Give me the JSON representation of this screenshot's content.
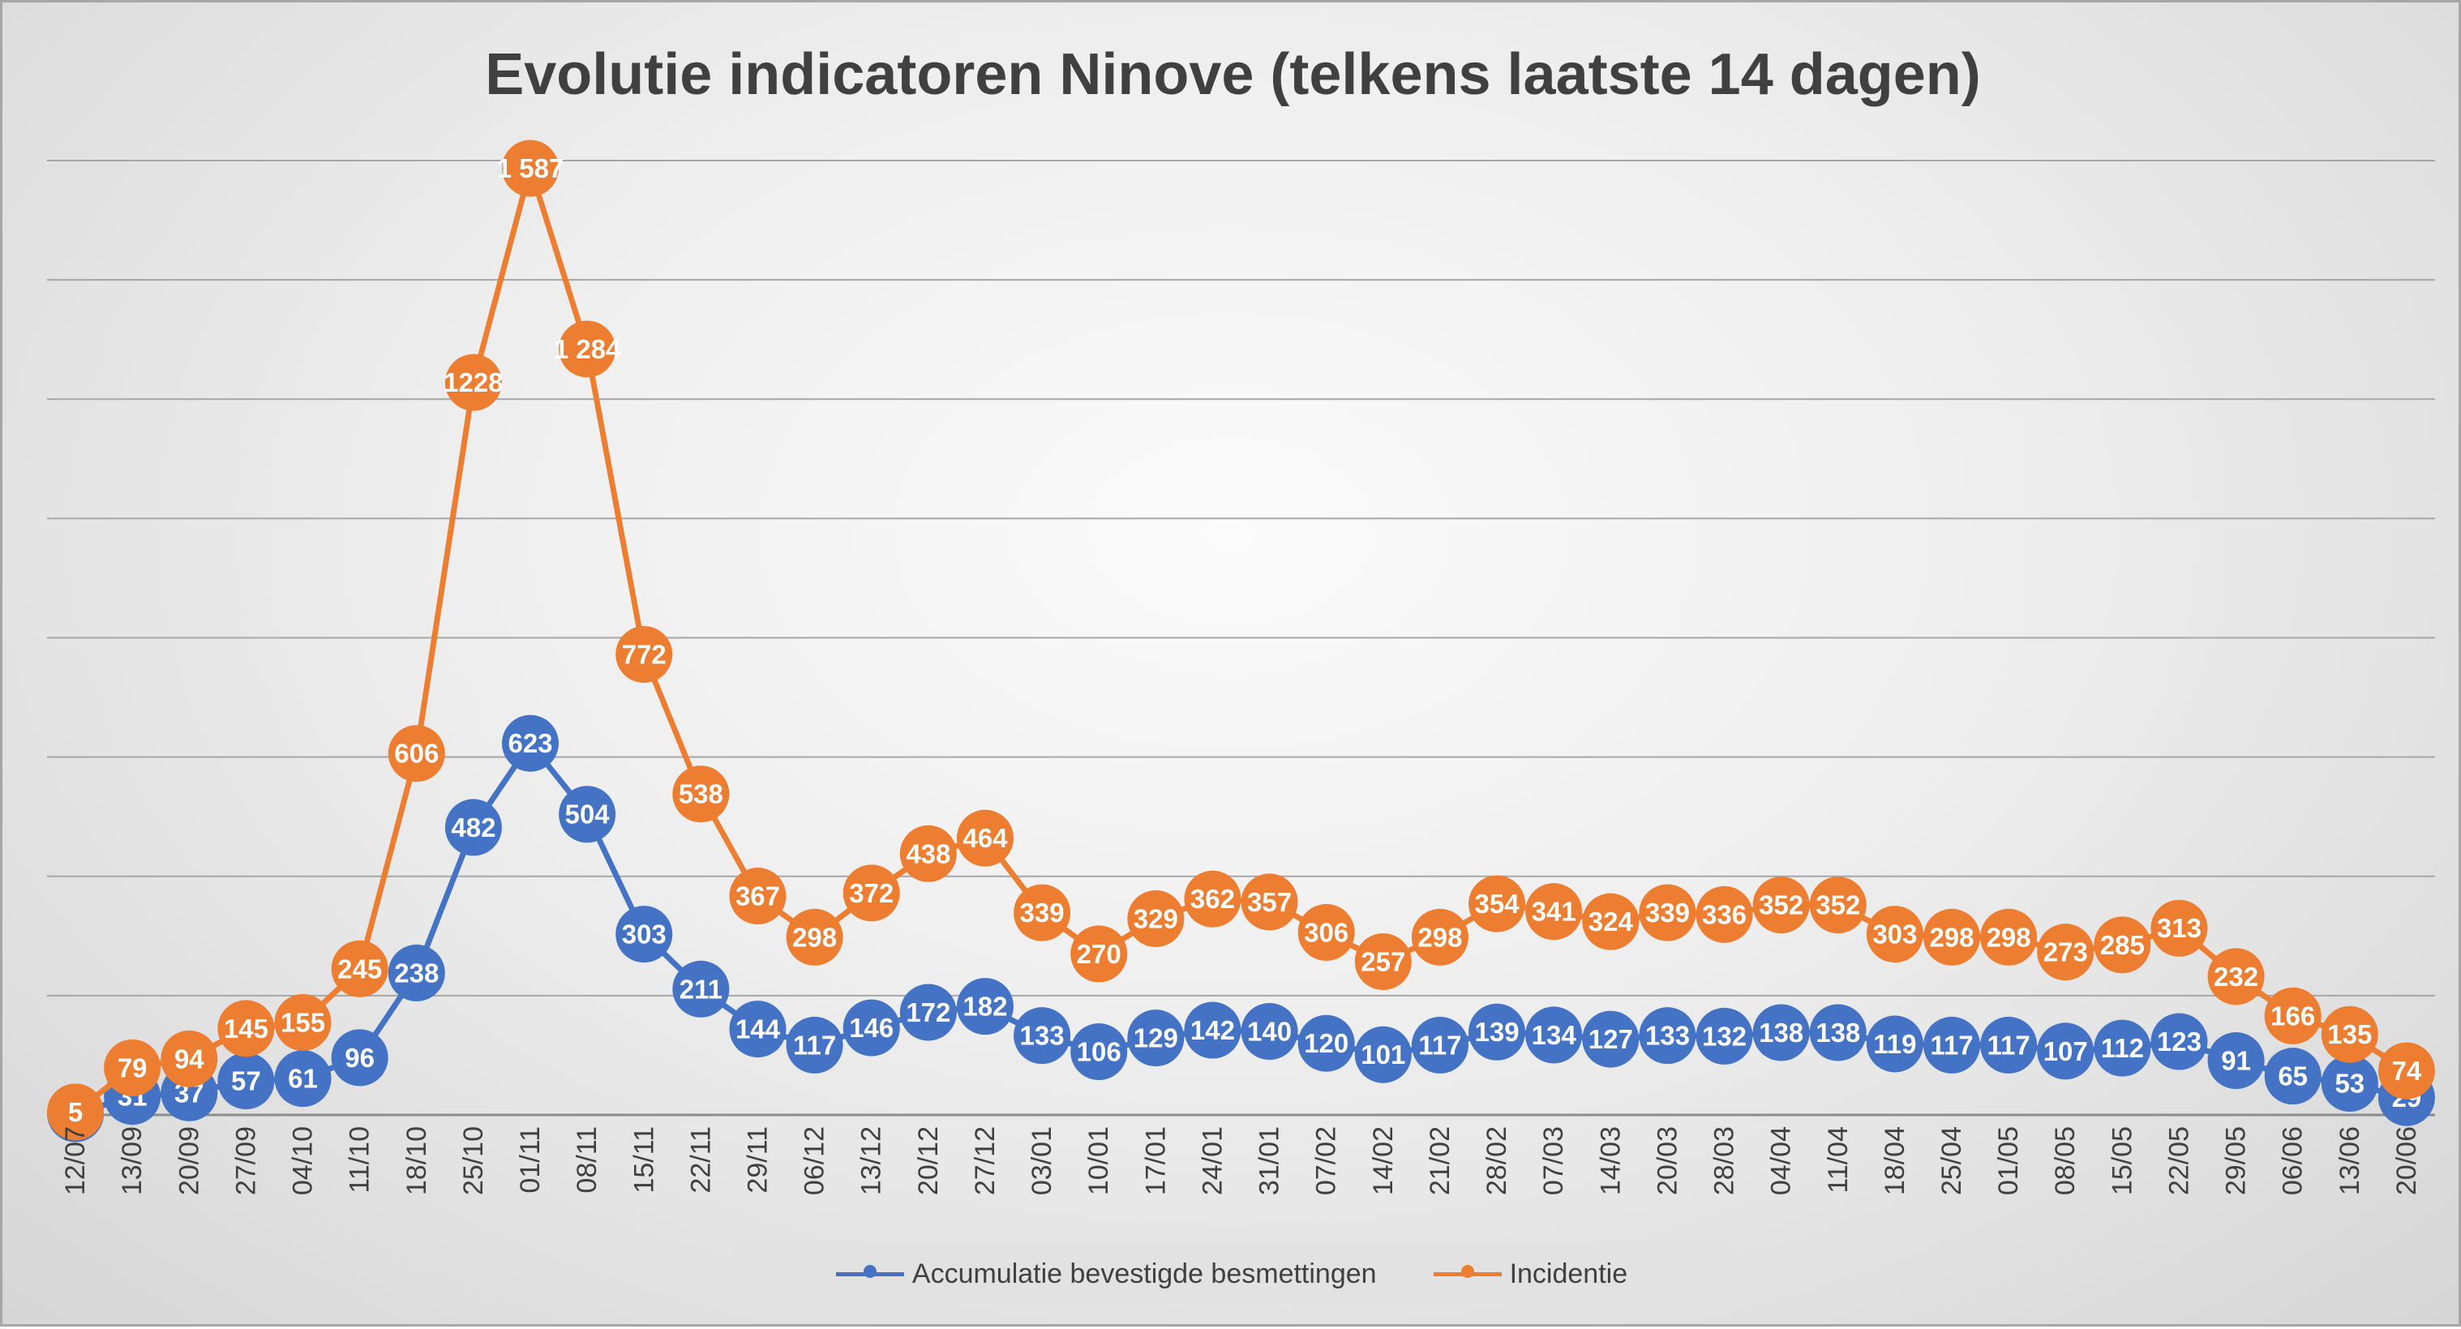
{
  "chart_data": {
    "type": "line",
    "title": "Evolutie indicatoren Ninove (telkens laatste 14 dagen)",
    "xlabel": "",
    "ylabel": "",
    "ylim": [
      0,
      1600
    ],
    "grid": true,
    "legend_position": "bottom",
    "categories": [
      "12/07",
      "13/09",
      "20/09",
      "27/09",
      "04/10",
      "11/10",
      "18/10",
      "25/10",
      "01/11",
      "08/11",
      "15/11",
      "22/11",
      "29/11",
      "06/12",
      "13/12",
      "20/12",
      "27/12",
      "03/01",
      "10/01",
      "17/01",
      "24/01",
      "31/01",
      "07/02",
      "14/02",
      "21/02",
      "28/02",
      "07/03",
      "14/03",
      "20/03",
      "28/03",
      "04/04",
      "11/04",
      "18/04",
      "25/04",
      "01/05",
      "08/05",
      "15/05",
      "22/05",
      "29/05",
      "06/06",
      "13/06",
      "20/06"
    ],
    "series": [
      {
        "name": "Accumulatie bevestigde besmettingen",
        "color": "#4472c4",
        "values": [
          2,
          31,
          37,
          57,
          61,
          96,
          238,
          482,
          623,
          504,
          303,
          211,
          144,
          117,
          146,
          172,
          182,
          133,
          106,
          129,
          142,
          140,
          120,
          101,
          117,
          139,
          134,
          127,
          133,
          132,
          138,
          138,
          119,
          117,
          117,
          107,
          112,
          123,
          91,
          65,
          53,
          29
        ],
        "labels": [
          "2",
          "31",
          "37",
          "57",
          "61",
          "96",
          "238",
          "482",
          "623",
          "504",
          "303",
          "211",
          "144",
          "117",
          "146",
          "172",
          "182",
          "133",
          "106",
          "129",
          "142",
          "140",
          "120",
          "101",
          "117",
          "139",
          "134",
          "127",
          "133",
          "132",
          "138",
          "138",
          "119",
          "117",
          "117",
          "107",
          "112",
          "123",
          "91",
          "65",
          "53",
          "29"
        ]
      },
      {
        "name": "Incidentie",
        "color": "#ed7d31",
        "values": [
          5,
          79,
          94,
          145,
          155,
          245,
          606,
          1228,
          1587,
          1284,
          772,
          538,
          367,
          298,
          372,
          438,
          464,
          339,
          270,
          329,
          362,
          357,
          306,
          257,
          298,
          354,
          341,
          324,
          339,
          336,
          352,
          352,
          303,
          298,
          298,
          273,
          285,
          313,
          232,
          166,
          135,
          74
        ],
        "labels": [
          "5",
          "79",
          "94",
          "145",
          "155",
          "245",
          "606",
          "1228",
          "1 587",
          "1 284",
          "772",
          "538",
          "367",
          "298",
          "372",
          "438",
          "464",
          "339",
          "270",
          "329",
          "362",
          "357",
          "306",
          "257",
          "298",
          "354",
          "341",
          "324",
          "339",
          "336",
          "352",
          "352",
          "303",
          "298",
          "298",
          "273",
          "285",
          "313",
          "232",
          "166",
          "135",
          "74"
        ]
      }
    ]
  }
}
